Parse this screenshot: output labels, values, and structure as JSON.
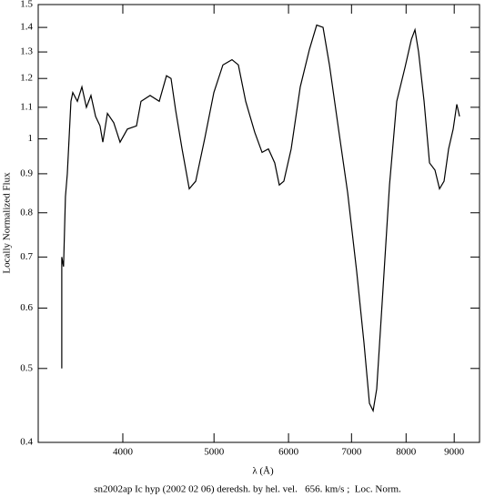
{
  "chart_data": {
    "type": "line",
    "xlabel": "λ (Å)",
    "ylabel": "Locally Normalized Flux",
    "caption": "sn2002ap Ic hyp (2002 02 06) deredsh. by hel. vel.   656. km/s ;  Loc. Norm.",
    "xscale": "log",
    "yscale": "log",
    "xlim": [
      3252,
      9575
    ],
    "ylim": [
      0.4,
      1.5
    ],
    "xticks": [
      4000,
      5000,
      6000,
      7000,
      8000,
      9000
    ],
    "yticks": [
      0.4,
      0.5,
      0.6,
      0.7,
      0.8,
      0.9,
      1,
      1.1,
      1.2,
      1.3,
      1.4,
      1.5
    ],
    "color": "#000000",
    "x": [
      3445,
      3445,
      3460,
      3476,
      3492,
      3507,
      3523,
      3539,
      3579,
      3619,
      3659,
      3700,
      3742,
      3783,
      3809,
      3852,
      3912,
      3973,
      4045,
      4136,
      4182,
      4276,
      4373,
      4451,
      4501,
      4552,
      4624,
      4675,
      4706,
      4781,
      4887,
      4998,
      5110,
      5225,
      5307,
      5403,
      5524,
      5624,
      5712,
      5801,
      5866,
      5932,
      6039,
      6175,
      6315,
      6428,
      6529,
      6632,
      6781,
      6934,
      7089,
      7217,
      7314,
      7380,
      7445,
      7545,
      7682,
      7819,
      7978,
      8104,
      8176,
      8248,
      8360,
      8472,
      8586,
      8682,
      8779,
      8877,
      8977,
      9057,
      9118
    ],
    "values": [
      0.5,
      0.7,
      0.68,
      0.84,
      0.9,
      1.0,
      1.12,
      1.15,
      1.12,
      1.17,
      1.1,
      1.14,
      1.07,
      1.04,
      0.99,
      1.08,
      1.05,
      0.99,
      1.03,
      1.04,
      1.12,
      1.14,
      1.12,
      1.21,
      1.2,
      1.09,
      0.97,
      0.9,
      0.86,
      0.88,
      1.0,
      1.15,
      1.25,
      1.27,
      1.25,
      1.12,
      1.02,
      0.96,
      0.97,
      0.93,
      0.87,
      0.88,
      0.97,
      1.17,
      1.31,
      1.41,
      1.4,
      1.25,
      1.03,
      0.85,
      0.67,
      0.54,
      0.45,
      0.44,
      0.47,
      0.61,
      0.87,
      1.12,
      1.24,
      1.35,
      1.39,
      1.3,
      1.12,
      0.93,
      0.91,
      0.86,
      0.88,
      0.97,
      1.03,
      1.11,
      1.07
    ]
  }
}
